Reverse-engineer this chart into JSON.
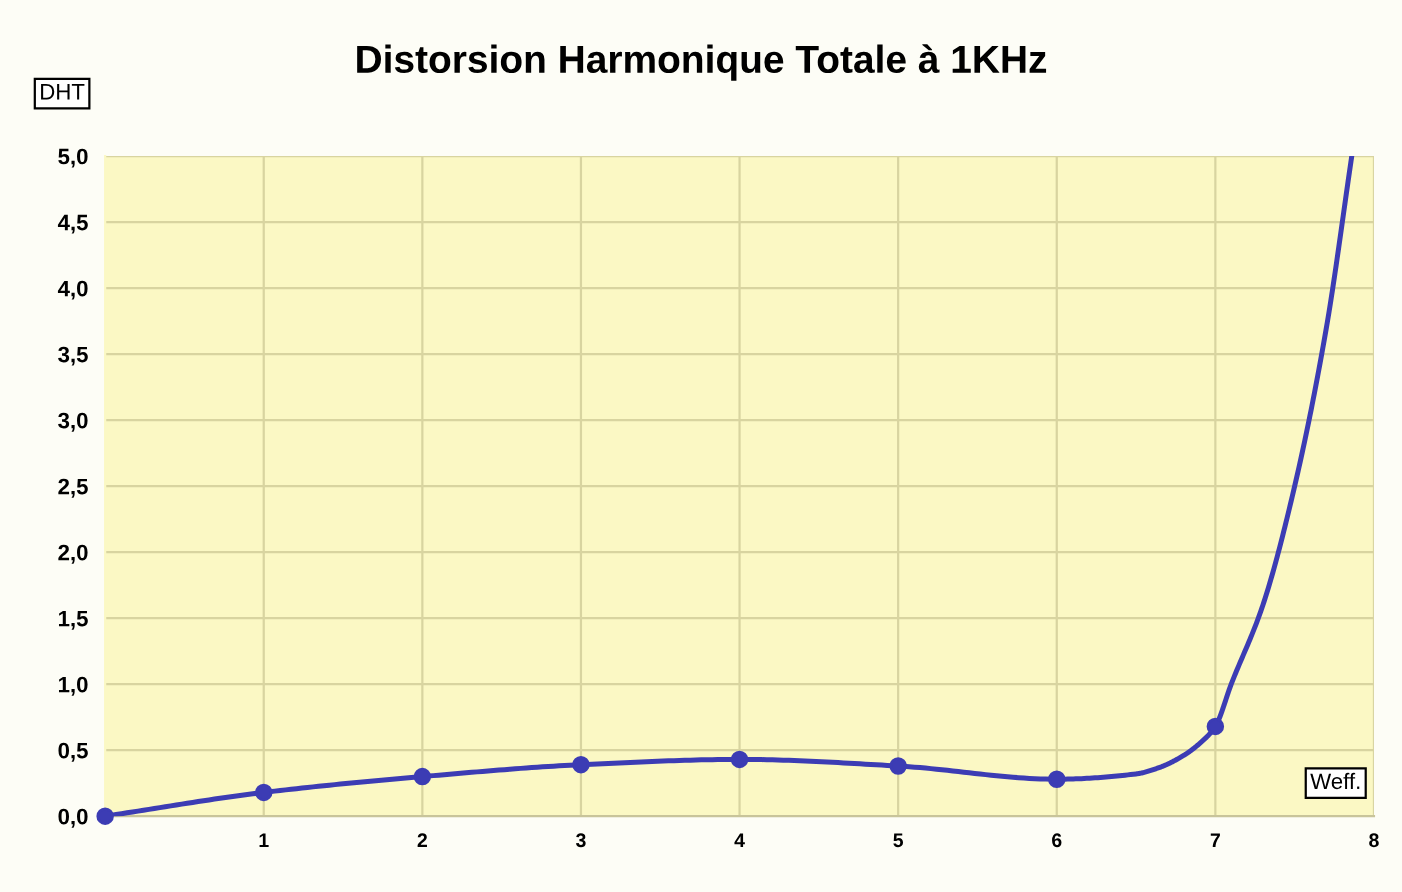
{
  "chart_data": {
    "type": "line",
    "title": "Distorsion Harmonique Totale à 1KHz",
    "xlabel": "Weff.",
    "ylabel": "DHT",
    "xlim": [
      0,
      8
    ],
    "xticks": [
      1,
      2,
      3,
      4,
      5,
      6,
      7,
      8
    ],
    "ylim": [
      0,
      5
    ],
    "yticks": [
      {
        "value": 0,
        "label": "0,0"
      },
      {
        "value": 0.5,
        "label": "0,5"
      },
      {
        "value": 1,
        "label": "1,0"
      },
      {
        "value": 1.5,
        "label": "1,5"
      },
      {
        "value": 2,
        "label": "2,0"
      },
      {
        "value": 2.5,
        "label": "2,5"
      },
      {
        "value": 3,
        "label": "3,0"
      },
      {
        "value": 3.5,
        "label": "3,5"
      },
      {
        "value": 4,
        "label": "4,0"
      },
      {
        "value": 4.5,
        "label": "4,5"
      },
      {
        "value": 5,
        "label": "5,0"
      }
    ],
    "grid": true,
    "line_style": "solid",
    "series": [
      {
        "type": "line",
        "color": "#3c3cb4",
        "marker": "none",
        "x": [
          0,
          1,
          2,
          3,
          4,
          5,
          6,
          6.5,
          6.65,
          6.8,
          6.9,
          7,
          7.1,
          7.3,
          7.5,
          7.7,
          7.86
        ],
        "values": [
          0.0,
          0.18,
          0.3,
          0.39,
          0.43,
          0.38,
          0.28,
          0.32,
          0.37,
          0.46,
          0.55,
          0.68,
          1.0,
          1.6,
          2.5,
          3.7,
          5.0
        ]
      },
      {
        "type": "scatter",
        "color": "#3c3cb4",
        "marker": "circle",
        "x": [
          0,
          1,
          2,
          3,
          4,
          5,
          6,
          7
        ],
        "values": [
          0.0,
          0.18,
          0.3,
          0.39,
          0.43,
          0.38,
          0.28,
          0.68
        ]
      }
    ]
  }
}
